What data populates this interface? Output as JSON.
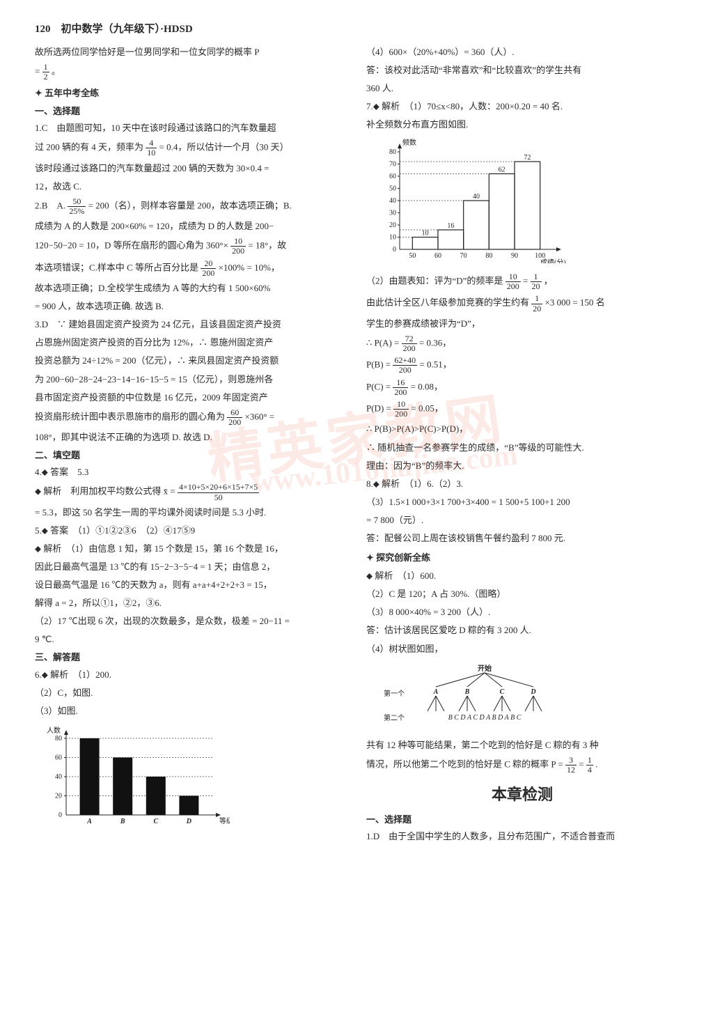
{
  "page_header": "120　初中数学（九年级下）·HDSD",
  "watermark_main": "精英家教网",
  "watermark_url": "www.1010jiajiao.com",
  "left": {
    "intro1_a": "故所选两位同学恰好是一位男同学和一位女同学的概率 P",
    "intro1_b": "= ",
    "frac_1n": "1",
    "frac_1d": "2",
    "period": "。",
    "sec1": "五年中考全练",
    "sub1": "一、选择题",
    "q1a": "1.C　由题图可知，10 天中在该时段通过该路口的汽车数量超",
    "q1b_a": "过 200 辆的有 4 天，频率为",
    "frac_q1n": "4",
    "frac_q1d": "10",
    "q1b_b": "= 0.4，所以估计一个月（30 天）",
    "q1c": "该时段通过该路口的汽车数量超过 200 辆的天数为 30×0.4 =",
    "q1d": "12，故选 C.",
    "q2a_a": "2.B　A.",
    "frac_q2an": "50",
    "frac_q2ad": "25%",
    "q2a_b": "= 200（名），则样本容量是 200，故本选项正确；B.",
    "q2b": "成绩为 A 的人数是 200×60% = 120，成绩为 D 的人数是 200−",
    "q2c_a": "120−50−20 = 10，D 等所在扇形的圆心角为 360°×",
    "frac_q2cn": "10",
    "frac_q2cd": "200",
    "q2c_b": "= 18°，故",
    "q2d_a": "本选项错误；C.样本中 C 等所占百分比是",
    "frac_q2dn": "20",
    "frac_q2dd": "200",
    "q2d_b": "×100% = 10%，",
    "q2e": "故本选项正确；D.全校学生成绩为 A 等的大约有 1 500×60%",
    "q2f": "= 900 人，故本选项正确. 故选 B.",
    "q3a": "3.D　∵ 建始县固定资产投资为 24 亿元，且该县固定资产投资",
    "q3b": "占恩施州固定资产投资的百分比为 12%，∴ 恩施州固定资产",
    "q3c": "投资总额为 24÷12% = 200（亿元），∴ 来凤县固定资产投资额",
    "q3d": "为 200−60−28−24−23−14−16−15−5 = 15（亿元），则恩施州各",
    "q3e": "县市固定资产投资额的中位数是 16 亿元，2009 年固定资产",
    "q3f_a": "投资扇形统计图中表示恩施市的扇形的圆心角为",
    "frac_q3fn": "60",
    "frac_q3fd": "200",
    "q3f_b": "×360° =",
    "q3g": "108°，即其中说法不正确的为选项 D. 故选 D.",
    "sub2": "二、填空题",
    "q4a": "4.⬥ 答案　5.3",
    "q4b_a": "⬥ 解析　利用加权平均数公式得 x̄ =",
    "frac_q4bn": "4×10+5×20+6×15+7×5",
    "frac_q4bd": "50",
    "q4c": "= 5.3，即这 50 名学生一周的平均课外阅读时间是 5.3 小时.",
    "q5a": "5.⬥ 答案　（1）①1②2③6　（2）④17⑤9",
    "q5b": "⬥ 解析　（1）由信息 1 知，第 15 个数是 15，第 16 个数是 16，",
    "q5c": "因此日最高气温是 13 ℃的有 15−2−3−5−4 = 1 天；由信息 2，",
    "q5d": "设日最高气温是 16 ℃的天数为 a，则有 a+a+4+2+2+3 = 15，",
    "q5e": "解得 a = 2，所以①1，②2，③6.",
    "q5f": "（2）17 ℃出现 6 次，出现的次数最多，是众数，极差 = 20−11 =",
    "q5g": "9 ℃.",
    "sub3": "三、解答题",
    "q6a": "6.⬥ 解析　（1）200.",
    "q6b": "（2）C，如图.",
    "q6c": "（3）如图.",
    "chart6": {
      "type": "bar",
      "y_label": "人数",
      "x_label": "等级",
      "categories": [
        "A",
        "B",
        "C",
        "D"
      ],
      "values": [
        80,
        60,
        40,
        20
      ],
      "ylim": [
        0,
        80
      ],
      "ytick_step": 20,
      "bar_color": "#111111",
      "axis_color": "#222222"
    }
  },
  "right": {
    "q6d": "（4）600×（20%+40%）= 360（人）.",
    "q6e": "答：该校对此活动“非常喜欢”和“比较喜欢”的学生共有",
    "q6f": "360 人.",
    "q7a": "7.⬥ 解析　（1）70≤x<80，人数：200×0.20 = 40 名.",
    "q7b": "补全频数分布直方图如图.",
    "chart7": {
      "type": "bar",
      "y_label": "频数",
      "x_label": "成绩(分)",
      "x_edges": [
        50,
        60,
        70,
        80,
        90,
        100
      ],
      "categories": [
        "50",
        "60",
        "70",
        "80",
        "90",
        "100"
      ],
      "bar_tops": [
        10,
        16,
        40,
        62,
        72
      ],
      "ylim": [
        0,
        80
      ],
      "ytick_step": 10,
      "bar_outline_color": "#222222",
      "bar_fill": "none",
      "axis_color": "#222222"
    },
    "q7c_a": "（2）由题表知：评为“D”的频率是",
    "frac_7cn": "10",
    "frac_7cd": "200",
    "q7c_eq": " = ",
    "frac_7cn2": "1",
    "frac_7cd2": "20",
    "q7c_b": "，",
    "q7d_a": "由此估计全区八年级参加竞赛的学生约有",
    "frac_7dn": "1",
    "frac_7dd": "20",
    "q7d_b": "×3 000 = 150 名",
    "q7e": "学生的参赛成绩被评为“D”，",
    "pA_a": "∴ P(A) = ",
    "pA_n": "72",
    "pA_d": "200",
    "pA_b": " = 0.36，",
    "pB_a": "P(B) = ",
    "pB_n": "62+40",
    "pB_d": "200",
    "pB_b": " = 0.51，",
    "pC_a": "P(C) = ",
    "pC_n": "16",
    "pC_d": "200",
    "pC_b": " = 0.08，",
    "pD_a": "P(D) = ",
    "pD_n": "10",
    "pD_d": "200",
    "pD_b": " = 0.05，",
    "q7f": "∴ P(B)>P(A)>P(C)>P(D)，",
    "q7g": "∴ 随机抽查一名参赛学生的成绩，“B”等级的可能性大.",
    "q7h": "理由：因为“B”的频率大.",
    "q8a": "8.⬥ 解析　（1）6.（2）3.",
    "q8b": "（3）1.5×1 000+3×1 700+3×400 = 1 500+5 100+1 200",
    "q8c": "= 7 800（元）.",
    "q8d": "答：配餐公司上周在该校销售午餐约盈利 7 800 元.",
    "sec2": "探究创新全练",
    "e1": "⬥ 解析　（1）600.",
    "e2": "（2）C 是 120；A 占 30%.（图略）",
    "e3": "（3）8 000×40% = 3 200（人）.",
    "e4": "答：估计该居民区爱吃 D 粽的有 3 200 人.",
    "e5": "（4）树状图如图，",
    "tree": {
      "root_label": "开始",
      "row1_label": "第一个",
      "row1": [
        "A",
        "B",
        "C",
        "D"
      ],
      "row2_label": "第二个",
      "row2": "B C D  A C D  A B D  A B C"
    },
    "e6": "共有 12 种等可能结果，第二个吃到的恰好是 C 粽的有 3 种",
    "e7_a": "情况，所以他第二个吃到的恰好是 C 粽的概率 P = ",
    "frac_e7n": "3",
    "frac_e7d": "12",
    "e7_eq": " = ",
    "frac_e7n2": "1",
    "frac_e7d2": "4",
    "e7_b": ".",
    "chapter": "本章检测",
    "sub4": "一、选择题",
    "c1": "1.D　由于全国中学生的人数多，且分布范围广，不适合普查而"
  }
}
